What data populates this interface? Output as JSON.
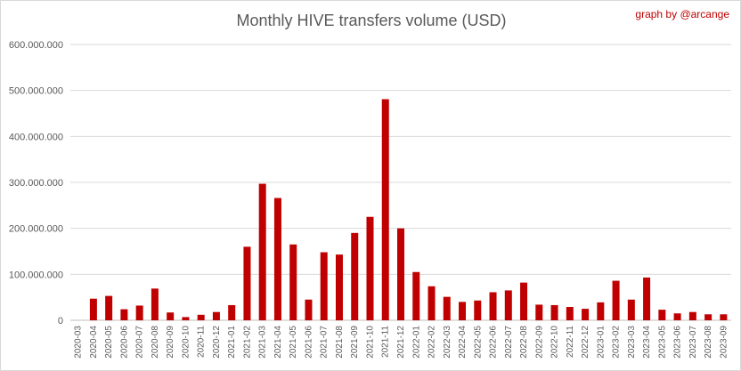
{
  "credit": "graph by @arcange",
  "chart_data": {
    "type": "bar",
    "title": "Monthly HIVE transfers volume (USD)",
    "xlabel": "",
    "ylabel": "",
    "ylim": [
      0,
      600000000
    ],
    "yticks": [
      {
        "value": 0,
        "label": "0"
      },
      {
        "value": 100000000,
        "label": "100.000.000"
      },
      {
        "value": 200000000,
        "label": "200.000.000"
      },
      {
        "value": 300000000,
        "label": "300.000.000"
      },
      {
        "value": 400000000,
        "label": "400.000.000"
      },
      {
        "value": 500000000,
        "label": "500.000.000"
      },
      {
        "value": 600000000,
        "label": "600.000.000"
      }
    ],
    "grid": true,
    "bar_color": "#c00000",
    "categories": [
      "2020-03",
      "2020-04",
      "2020-05",
      "2020-06",
      "2020-07",
      "2020-08",
      "2020-09",
      "2020-10",
      "2020-11",
      "2020-12",
      "2021-01",
      "2021-02",
      "2021-03",
      "2021-04",
      "2021-05",
      "2021-06",
      "2021-07",
      "2021-08",
      "2021-09",
      "2021-10",
      "2021-11",
      "2021-12",
      "2022-01",
      "2022-02",
      "2022-03",
      "2022-04",
      "2022-05",
      "2022-06",
      "2022-07",
      "2022-08",
      "2022-09",
      "2022-10",
      "2022-11",
      "2022-12",
      "2023-01",
      "2023-02",
      "2023-03",
      "2023-04",
      "2023-05",
      "2023-06",
      "2023-07",
      "2023-08",
      "2023-09"
    ],
    "values": [
      0,
      47000000,
      53000000,
      24000000,
      32000000,
      69000000,
      17000000,
      7000000,
      12000000,
      18000000,
      33000000,
      160000000,
      297000000,
      266000000,
      165000000,
      45000000,
      148000000,
      143000000,
      190000000,
      225000000,
      481000000,
      200000000,
      105000000,
      74000000,
      51000000,
      40000000,
      43000000,
      61000000,
      65000000,
      82000000,
      34000000,
      33000000,
      29000000,
      25000000,
      39000000,
      86000000,
      45000000,
      93000000,
      23000000,
      15000000,
      18000000,
      13000000,
      13000000
    ]
  }
}
